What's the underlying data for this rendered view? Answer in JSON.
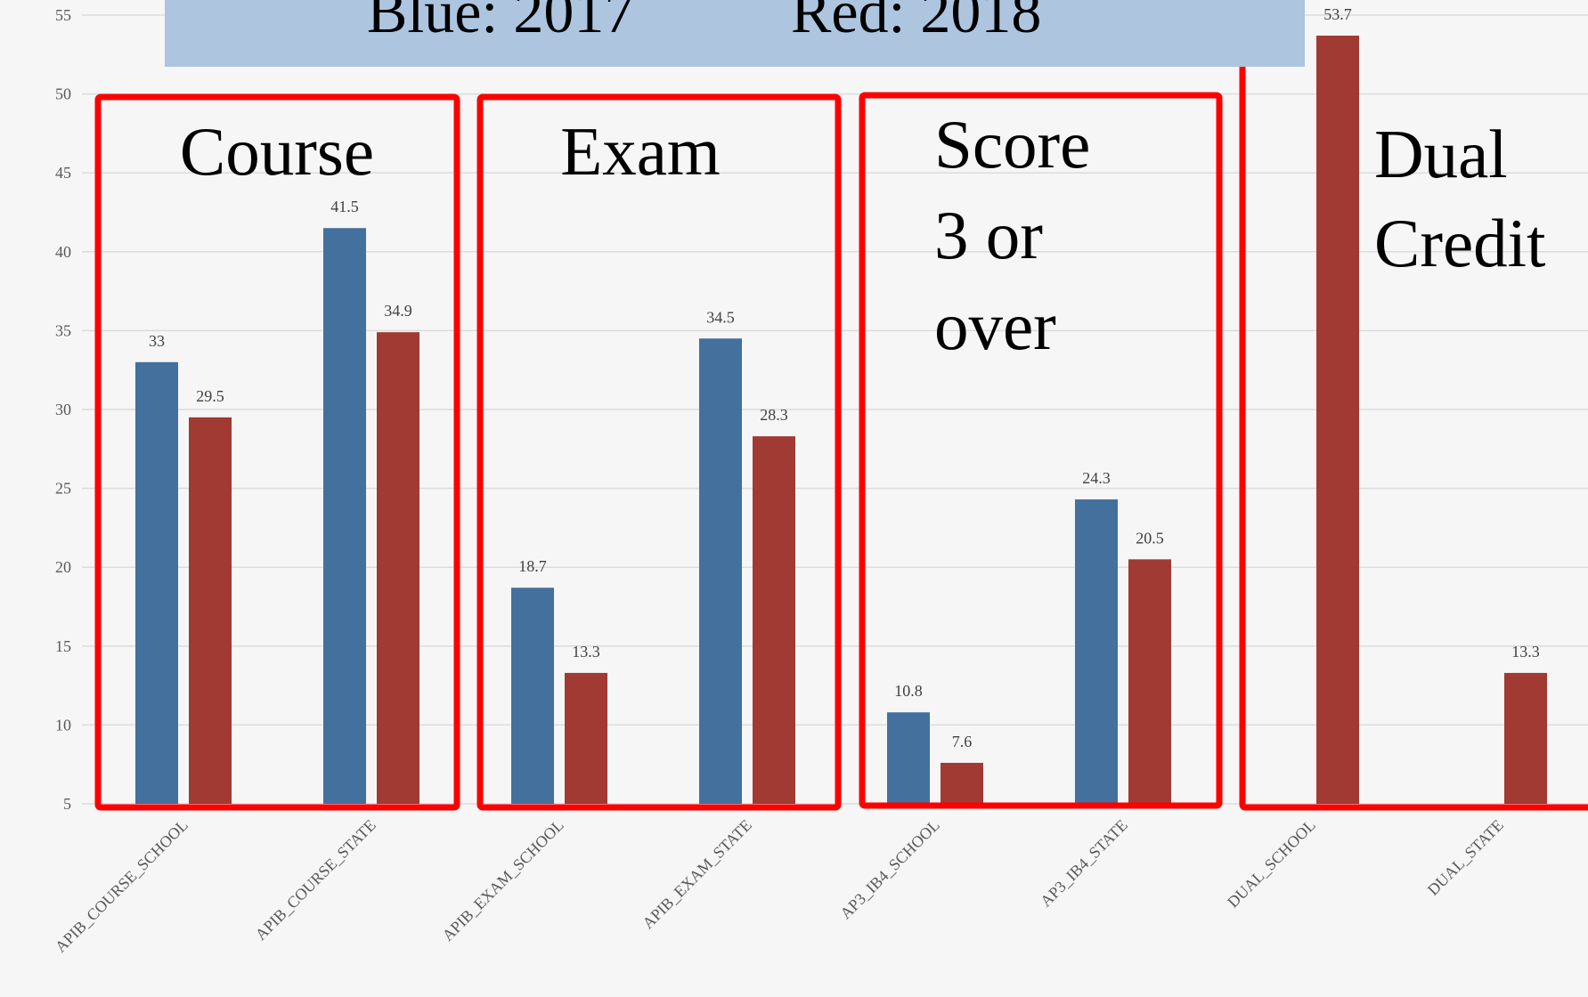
{
  "chart_data": {
    "type": "bar",
    "banner": [
      "Blue:  2017",
      "Red:  2018"
    ],
    "categories": [
      "APIB_COURSE_SCHOOL",
      "APIB_COURSE_STATE",
      "APIB_EXAM_SCHOOL",
      "APIB_EXAM_STATE",
      "AP3_IB4_SCHOOL",
      "AP3_IB4_STATE",
      "DUAL_SCHOOL",
      "DUAL_STATE"
    ],
    "series": [
      {
        "name": "2017",
        "color": "#44709d",
        "values": [
          33,
          41.5,
          18.7,
          34.5,
          10.8,
          24.3,
          null,
          null
        ]
      },
      {
        "name": "2018",
        "color": "#a03a32",
        "values": [
          29.5,
          34.9,
          13.3,
          28.3,
          7.6,
          20.5,
          53.7,
          13.3
        ]
      }
    ],
    "ylim": [
      5,
      55
    ],
    "yticks": [
      5,
      10,
      15,
      20,
      25,
      30,
      35,
      40,
      45,
      50,
      55
    ],
    "grid": true,
    "annotations": [
      [
        "Course"
      ],
      [
        "Exam"
      ],
      [
        "Score",
        "3 or",
        "over"
      ],
      [
        "Dual",
        "Credit"
      ]
    ]
  }
}
